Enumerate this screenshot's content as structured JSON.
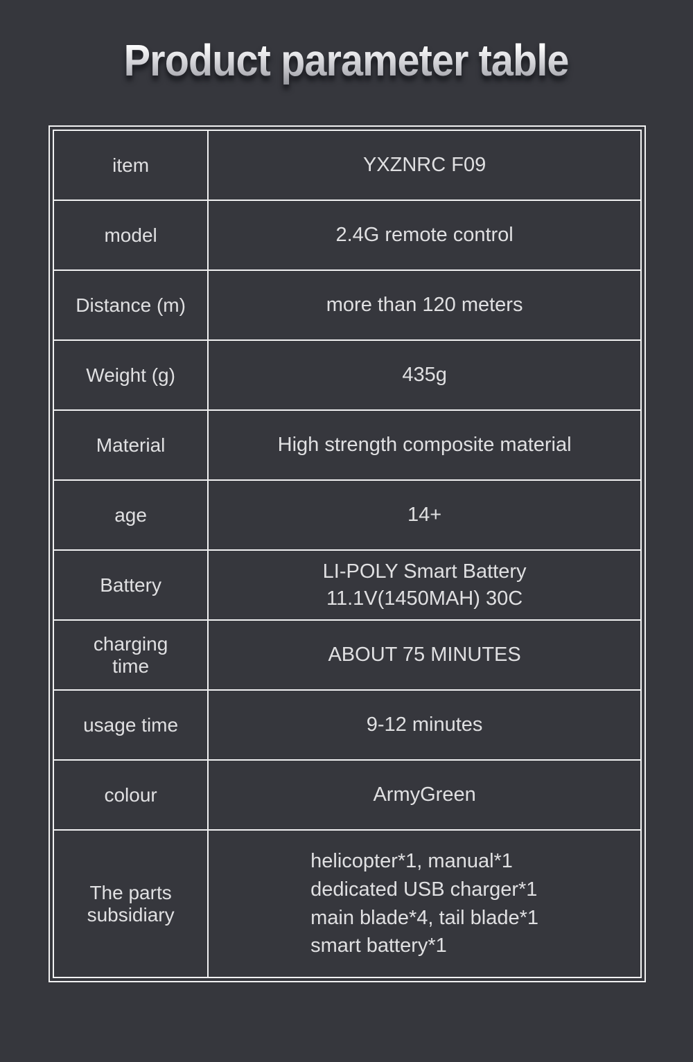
{
  "title": "Product parameter table",
  "colors": {
    "background": "#36373d",
    "border": "#f2f2f3",
    "text": "#e0e0e2",
    "title_gradient_top": "#ffffff",
    "title_gradient_bottom": "#96979e"
  },
  "table": {
    "rows": [
      {
        "label": "item",
        "value": "YXZNRC F09"
      },
      {
        "label": "model",
        "value": "2.4G remote control"
      },
      {
        "label": "Distance (m)",
        "value": "more than 120 meters"
      },
      {
        "label": "Weight (g)",
        "value": "435g"
      },
      {
        "label": "Material",
        "value": "High strength composite material"
      },
      {
        "label": "age",
        "value": "14+"
      },
      {
        "label": "Battery",
        "value": "LI-POLY Smart Battery\n11.1V(1450MAH) 30C"
      },
      {
        "label": "charging\ntime",
        "value": "ABOUT 75 MINUTES"
      },
      {
        "label": "usage time",
        "value": "9-12 minutes"
      },
      {
        "label": "colour",
        "value": "ArmyGreen"
      },
      {
        "label": "The parts\nsubsidiary",
        "value": "helicopter*1, manual*1\ndedicated USB charger*1\nmain blade*4, tail blade*1\nsmart battery*1",
        "value_align": "left",
        "tall": true
      }
    ]
  }
}
